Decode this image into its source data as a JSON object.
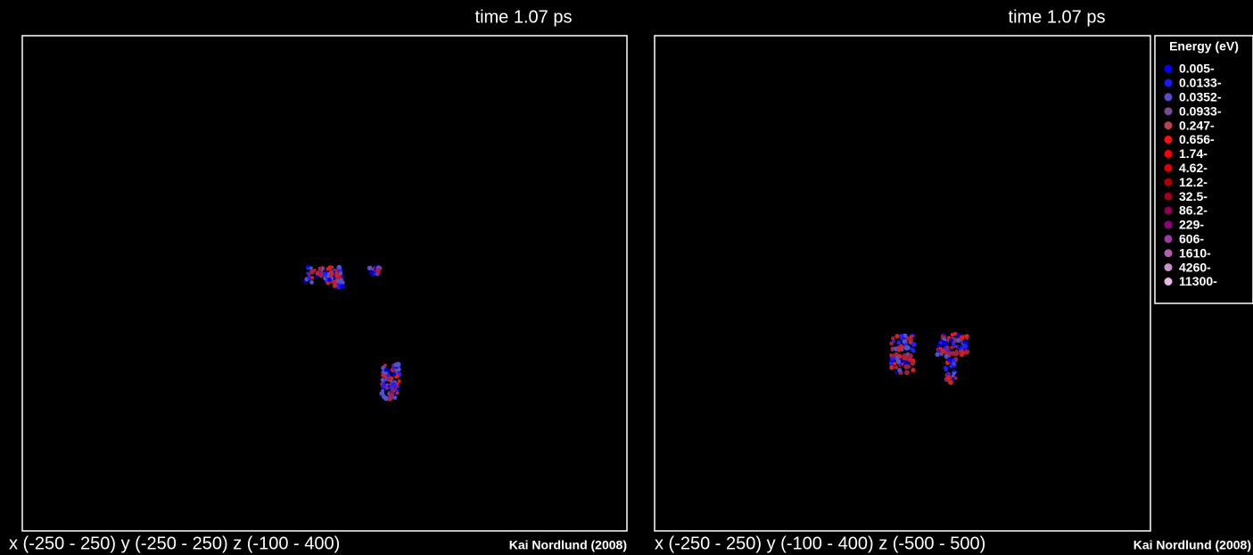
{
  "panels": [
    {
      "title": "time 1.07 ps",
      "range": "x (-250 - 250) y (-250 - 250) z (-100 - 400)",
      "credit": "Kai Nordlund (2008)"
    },
    {
      "title": "time 1.07 ps",
      "range": "x (-250 - 250) y (-100 - 400) z (-500 - 500)",
      "credit": "Kai Nordlund (2008)"
    }
  ],
  "legend": {
    "title": "Energy (eV)",
    "entries": [
      {
        "label": "0.005-",
        "color": "#0000ff"
      },
      {
        "label": "0.0133-",
        "color": "#1a1aee"
      },
      {
        "label": "0.0352-",
        "color": "#5a4ad0"
      },
      {
        "label": "0.0933-",
        "color": "#7a4a9a"
      },
      {
        "label": "0.247-",
        "color": "#c04050"
      },
      {
        "label": "0.656-",
        "color": "#ff1010"
      },
      {
        "label": "1.74-",
        "color": "#ff0000"
      },
      {
        "label": "4.62-",
        "color": "#dd0000"
      },
      {
        "label": "12.2-",
        "color": "#b00000"
      },
      {
        "label": "32.5-",
        "color": "#a00020"
      },
      {
        "label": "86.2-",
        "color": "#900050"
      },
      {
        "label": "229-",
        "color": "#900080"
      },
      {
        "label": "606-",
        "color": "#a03aa0"
      },
      {
        "label": "1610-",
        "color": "#b060b0"
      },
      {
        "label": "4260-",
        "color": "#c890c8"
      },
      {
        "label": "11300-",
        "color": "#e8b8e0"
      }
    ]
  }
}
